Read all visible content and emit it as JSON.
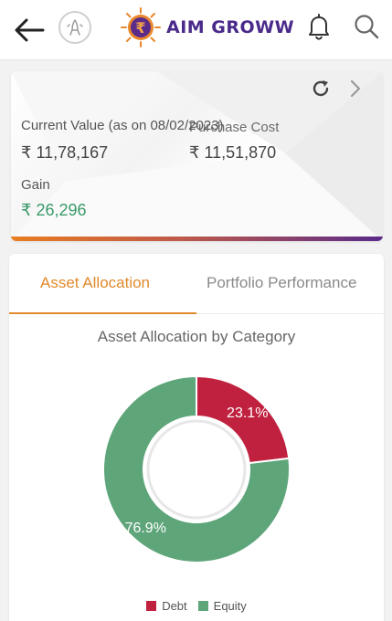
{
  "header": {
    "brand_name": "AIM GROWW",
    "brand_symbol": "₹",
    "icons": {
      "back": "arrow-left-icon",
      "namaste": "namaste-icon",
      "notifications": "bell-icon",
      "search": "search-icon"
    }
  },
  "summary": {
    "current_value_label": "Current Value  (as on 08/02/2023)",
    "current_value": "₹ 11,78,167",
    "purchase_cost_label": "Purchase Cost",
    "purchase_cost": "₹ 11,51,870",
    "gain_label": "Gain",
    "gain_value": "₹ 26,296"
  },
  "tabs": [
    {
      "label": "Asset Allocation",
      "active": true
    },
    {
      "label": "Portfolio Performance",
      "active": false
    }
  ],
  "chart_title": "Asset Allocation by Category",
  "chart_data": {
    "type": "pie",
    "title": "Asset Allocation by Category",
    "categories": [
      "Debt",
      "Equity"
    ],
    "values": [
      23.1,
      76.9
    ],
    "labels": [
      "23.1%",
      "76.9%"
    ],
    "colors": [
      "#c0213f",
      "#5fa57a"
    ],
    "legend_position": "bottom",
    "donut": true
  },
  "colors": {
    "accent": "#e08a2c",
    "brand_purple": "#4a2a8a",
    "gain_green": "#3a9a6a"
  }
}
